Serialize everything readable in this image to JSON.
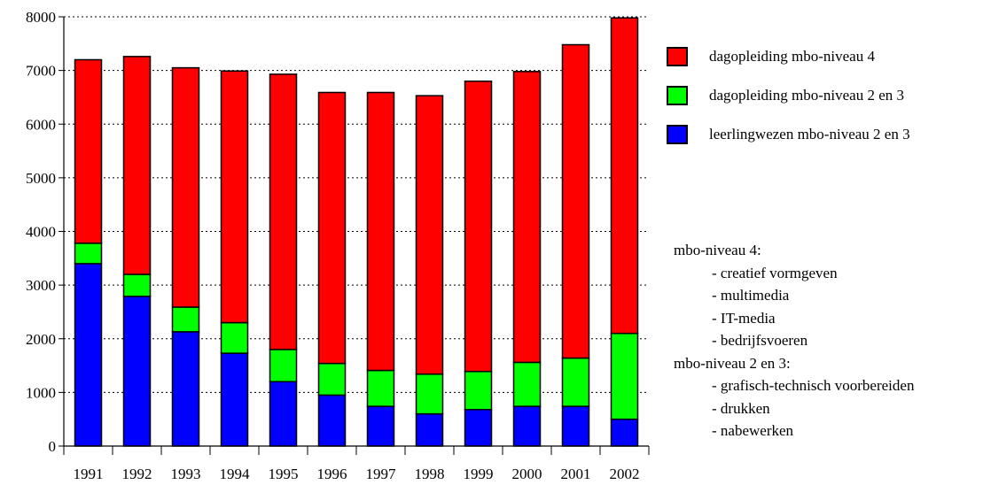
{
  "chart_data": {
    "type": "bar",
    "stacked": true,
    "categories": [
      "1991",
      "1992",
      "1993",
      "1994",
      "1995",
      "1996",
      "1997",
      "1998",
      "1999",
      "2000",
      "2001",
      "2002"
    ],
    "series": [
      {
        "name": "leerlingwezen mbo-niveau 2 en 3",
        "color": "#0000ff",
        "values": [
          3400,
          2790,
          2130,
          1730,
          1200,
          950,
          740,
          600,
          680,
          740,
          740,
          500
        ]
      },
      {
        "name": "dagopleiding mbo-niveau 2 en 3",
        "color": "#00ff00",
        "values": [
          380,
          410,
          460,
          570,
          600,
          590,
          670,
          740,
          710,
          820,
          900,
          1600
        ]
      },
      {
        "name": "dagopleiding mbo-niveau 4",
        "color": "#ff0000",
        "values": [
          3420,
          4060,
          4460,
          4690,
          5130,
          5050,
          5180,
          5190,
          5410,
          5420,
          5840,
          5880
        ]
      }
    ],
    "ylim": [
      0,
      8000
    ],
    "yticks": [
      "0",
      "1000",
      "2000",
      "3000",
      "4000",
      "5000",
      "6000",
      "7000",
      "8000"
    ],
    "grid": "horizontal dotted",
    "legend_position": "right",
    "title": "",
    "xlabel": "",
    "ylabel": ""
  },
  "legend": {
    "items": [
      {
        "label": "dagopleiding mbo-niveau 4",
        "color": "#ff0000"
      },
      {
        "label": "dagopleiding mbo-niveau 2 en 3",
        "color": "#00ff00"
      },
      {
        "label": "leerlingwezen mbo-niveau 2 en 3",
        "color": "#0000ff"
      }
    ]
  },
  "notes": {
    "level4_heading": "mbo-niveau 4:",
    "level4_items": [
      "- creatief vormgeven",
      "- multimedia",
      "- IT-media",
      "- bedrijfsvoeren"
    ],
    "level23_heading": "mbo-niveau 2 en 3:",
    "level23_items": [
      "- grafisch-technisch voorbereiden",
      "- drukken",
      "- nabewerken"
    ]
  }
}
